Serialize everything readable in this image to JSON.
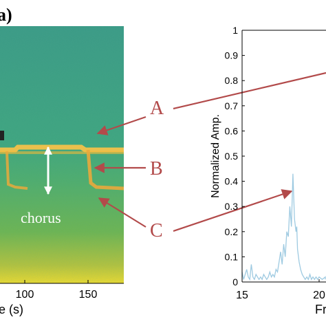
{
  "panel_label": "a)",
  "spectrogram": {
    "x_axis_label_fragment": "e (s)",
    "x_ticks": [
      100,
      150
    ],
    "annotation": "chorus"
  },
  "callouts": [
    {
      "letter": "A"
    },
    {
      "letter": "B"
    },
    {
      "letter": "C"
    }
  ],
  "colors": {
    "spectrogram_bg": "#3f9e85",
    "chorus_band": "#f0b93a",
    "arrow": "#b24a4a",
    "letter": "#b24a4a",
    "line": "#9ecae1",
    "axis": "#000000"
  },
  "chart_data": {
    "type": "line",
    "ylabel": "Normalized Amp.",
    "xlabel_fragment": "Fr",
    "ylim": [
      0,
      1
    ],
    "y_ticks": [
      0,
      0.1,
      0.2,
      0.3,
      0.4,
      0.5,
      0.6,
      0.7,
      0.8,
      0.9,
      1
    ],
    "y_tick_labels": [
      "0",
      "0.1",
      "0.2",
      "0.3",
      "0.4",
      "0.5",
      "0.6",
      "0.7",
      "0.8",
      "0.9",
      "1"
    ],
    "x_tick_labels": [
      "15",
      "20"
    ],
    "xlim_visible": [
      15,
      20.8
    ],
    "series": [
      {
        "x": [
          15.0,
          15.1,
          15.2,
          15.3,
          15.4,
          15.5,
          15.6,
          15.7,
          15.8,
          15.9,
          16.0,
          16.1,
          16.2,
          16.3,
          16.4,
          16.5,
          16.6,
          16.7,
          16.8,
          16.9,
          17.0,
          17.1,
          17.2,
          17.3,
          17.4,
          17.5,
          17.6,
          17.7,
          17.8,
          17.9,
          18.0,
          18.1,
          18.2,
          18.3,
          18.4,
          18.5,
          18.55,
          18.6,
          18.7,
          18.8,
          18.9,
          19.0,
          19.1,
          19.2,
          19.3,
          19.4,
          19.5,
          19.6,
          19.7,
          19.8,
          19.9,
          20.0,
          20.2,
          20.4,
          20.6,
          20.8
        ],
        "y": [
          0.04,
          0.01,
          0.03,
          0.05,
          0.02,
          0.01,
          0.07,
          0.02,
          0.01,
          0.03,
          0.02,
          0.01,
          0.02,
          0.01,
          0.03,
          0.02,
          0.01,
          0.02,
          0.04,
          0.02,
          0.03,
          0.02,
          0.05,
          0.04,
          0.08,
          0.12,
          0.07,
          0.15,
          0.1,
          0.2,
          0.18,
          0.3,
          0.22,
          0.43,
          0.25,
          0.2,
          0.22,
          0.13,
          0.08,
          0.05,
          0.03,
          0.02,
          0.01,
          0.02,
          0.01,
          0.03,
          0.01,
          0.02,
          0.01,
          0.02,
          0.01,
          0.02,
          0.01,
          0.02,
          0.01,
          0.01
        ]
      }
    ]
  }
}
